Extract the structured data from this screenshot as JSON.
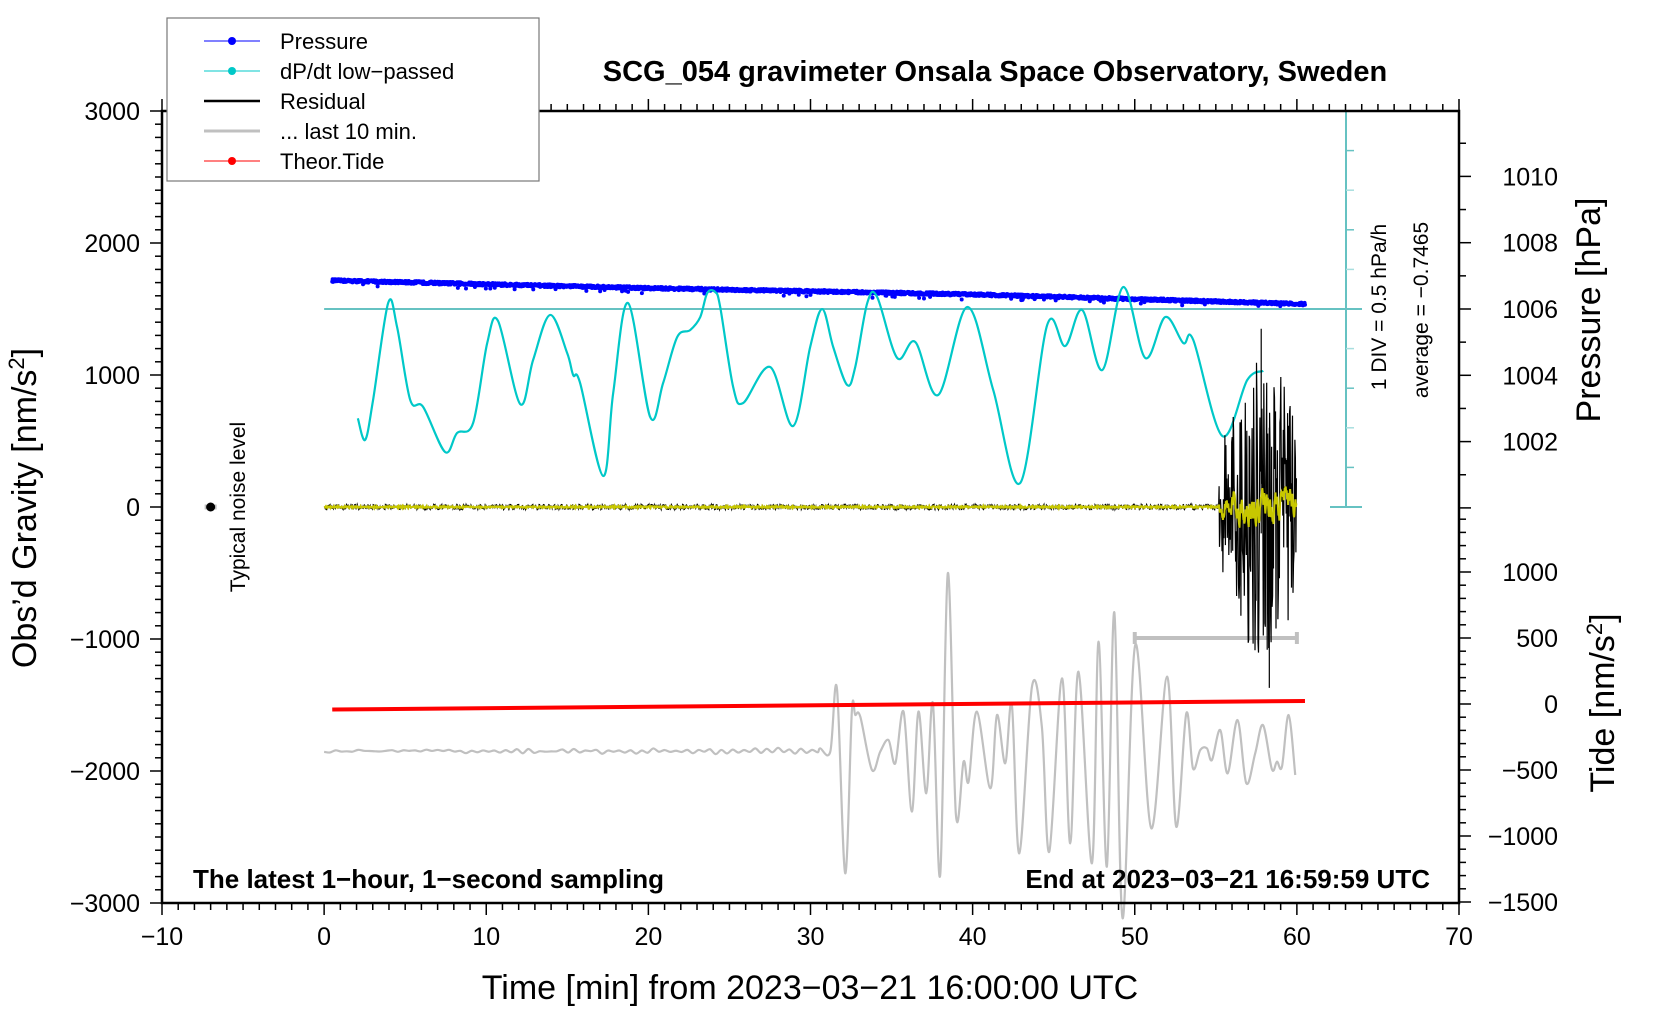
{
  "chart_data": {
    "type": "line",
    "title": "SCG_054 gravimeter Onsala Space Observatory, Sweden",
    "xlabel": "Time [min] from 2023−03−21 16:00:00 UTC",
    "ylabel_left": "Obs’d Gravity [nm/s",
    "ylabel_left_sup": "2",
    "ylabel_left_end": "]",
    "ylabel_right_pressure": "Pressure [hPa]",
    "ylabel_right_tide": "Tide [nm/s",
    "ylabel_right_tide_sup": "2",
    "ylabel_right_tide_end": "]",
    "note_left": "The latest 1−hour, 1−second sampling",
    "note_right": "End at 2023−03−21 16:59:59 UTC",
    "noise_label": "Typical noise level",
    "div_label": "1 DIV = 0.5 hPa/h",
    "average_label": "average = −0.7465",
    "dpdt_average": -0.7465,
    "dpdt_div": 0.5,
    "xlim": [
      -10,
      70
    ],
    "ylim_gravity": [
      -3000,
      3000
    ],
    "pressure_range": [
      1000,
      1011
    ],
    "tide_range": [
      -1500,
      1400
    ],
    "x_ticks": [
      "−10",
      "0",
      "10",
      "20",
      "30",
      "40",
      "50",
      "60",
      "70"
    ],
    "x_tick_values": [
      -10,
      0,
      10,
      20,
      30,
      40,
      50,
      60,
      70
    ],
    "gravity_ticks": [
      "3000",
      "2000",
      "1000",
      "0",
      "−1000",
      "−2000",
      "−3000"
    ],
    "gravity_tick_values": [
      3000,
      2000,
      1000,
      0,
      -1000,
      -2000,
      -3000
    ],
    "pressure_ticks": [
      "1010",
      "1008",
      "1006",
      "1004",
      "1002"
    ],
    "pressure_tick_values": [
      1010,
      1008,
      1006,
      1004,
      1002
    ],
    "tide_ticks": [
      "1000",
      "500",
      "0",
      "−500",
      "−1000",
      "−1500"
    ],
    "tide_tick_values": [
      1000,
      500,
      0,
      -500,
      -1000,
      -1500
    ],
    "legend": [
      {
        "label": "Pressure",
        "color": "#0000ff",
        "marker": true
      },
      {
        "label": "dP/dt low−passed",
        "color": "#00c8c8",
        "marker": true
      },
      {
        "label": "Residual",
        "color": "#000000",
        "marker": false
      },
      {
        "label": "... last 10 min.",
        "color": "#c0c0c0",
        "marker": false
      },
      {
        "label": "Theor.Tide",
        "color": "#ff0000",
        "marker": true
      }
    ],
    "series": {
      "pressure": {
        "name": "Pressure",
        "unit": "hPa",
        "color": "#0000ff",
        "t": [
          0.5,
          20,
          40,
          60.5
        ],
        "values": [
          1006.86,
          1006.63,
          1006.44,
          1006.15
        ],
        "scatter": 0.06
      },
      "dpdt": {
        "name": "dP/dt low-passed",
        "unit": "hPa/h",
        "color": "#00c8c8",
        "t": [
          2.08,
          2.53,
          3.02,
          3.95,
          4.5,
          5.31,
          6.11,
          7.46,
          8.2,
          9.19,
          10.06,
          10.73,
          12.09,
          12.89,
          13.94,
          14.99,
          15.36,
          15.79,
          17.21,
          17.83,
          18.75,
          20.11,
          20.91,
          21.78,
          22.58,
          23.2,
          23.63,
          24.12,
          24.43,
          25.23,
          25.85,
          27.51,
          28.93,
          29.98,
          30.72,
          31.4,
          32.26,
          32.76,
          33.5,
          34.11,
          35.35,
          36.46,
          37.88,
          39.67,
          41.27,
          42.94,
          44.6,
          45.71,
          46.76,
          48.0,
          49.29,
          50.65,
          51.88,
          52.99,
          53.61,
          55.4,
          56.94,
          57.93
        ],
        "values": [
          -2.127,
          -2.4,
          -1.895,
          -0.671,
          -0.974,
          -1.895,
          -1.984,
          -2.552,
          -2.312,
          -2.186,
          -1.176,
          -0.898,
          -1.946,
          -1.39,
          -0.822,
          -1.302,
          -1.58,
          -1.681,
          -2.855,
          -1.807,
          -0.671,
          -2.11,
          -1.681,
          -1.1,
          -1.012,
          -0.848,
          -0.545,
          -0.532,
          -0.721,
          -1.731,
          -1.933,
          -1.479,
          -2.224,
          -1.226,
          -0.747,
          -1.226,
          -1.706,
          -1.479,
          -0.671,
          -0.595,
          -1.365,
          -1.163,
          -1.832,
          -0.721,
          -1.769,
          -2.943,
          -0.948,
          -1.214,
          -0.759,
          -1.517,
          -0.469,
          -1.365,
          -0.848,
          -1.176,
          -1.138,
          -2.35,
          -1.643,
          -1.529
        ]
      },
      "residual": {
        "name": "Residual",
        "unit": "nm/s2",
        "color": "#000000",
        "smoothed_color": "#c8c800",
        "t_range": [
          0,
          60
        ],
        "quiet_amplitude": 20,
        "event_start": 55.2,
        "event_peak_max": 1350,
        "event_peak_min": -1370,
        "smoothed_amplitude": 250
      },
      "last10": {
        "name": "... last 10 min.",
        "unit": "nm/s2",
        "color": "#c0c0c0",
        "baseline": -1850,
        "t": [
          30.6,
          31.22,
          31.63,
          32.14,
          32.55,
          32.76,
          33.07,
          33.79,
          34.3,
          34.81,
          35.23,
          35.74,
          36.25,
          36.66,
          37.14,
          37.55,
          38.0,
          38.47,
          38.97,
          39.44,
          39.75,
          40.26,
          41.09,
          41.5,
          42.01,
          42.42,
          42.88,
          43.66,
          44.27,
          44.73,
          45.51,
          46.02,
          46.53,
          47.36,
          47.77,
          48.28,
          48.74,
          49.25,
          50.03,
          51.02,
          51.99,
          52.56,
          53.18,
          53.59,
          54.04,
          54.45,
          54.76,
          55.27,
          55.73,
          56.34,
          56.88,
          57.43,
          57.91,
          58.46,
          58.77,
          59.08,
          59.49,
          59.9
        ],
        "values": [
          -1828,
          -1854,
          -1374,
          -2775,
          -1550,
          -1576,
          -1588,
          -1992,
          -1854,
          -1765,
          -1942,
          -1550,
          -2308,
          -1550,
          -2169,
          -1487,
          -2788,
          -502,
          -2333,
          -1929,
          -2081,
          -1550,
          -2131,
          -1576,
          -1942,
          -1500,
          -2624,
          -1361,
          -1664,
          -2611,
          -1298,
          -2548,
          -1248,
          -2699,
          -1020,
          -2725,
          -798,
          -3116,
          -1045,
          -2434,
          -1285,
          -2422,
          -1563,
          -1980,
          -1841,
          -1828,
          -1917,
          -1689,
          -2018,
          -1614,
          -2093,
          -1866,
          -1652,
          -1987,
          -1929,
          -1967,
          -1576,
          -2030
        ]
      },
      "tide": {
        "name": "Theor.Tide",
        "unit": "nm/s2",
        "color": "#ff0000",
        "t": [
          0.5,
          60.5
        ],
        "values": [
          -42,
          23
        ]
      }
    },
    "scale_bar": {
      "t_start": 50,
      "t_end": 60,
      "tide_value": 500
    },
    "noise_marker": {
      "t": -7,
      "value": 0
    }
  }
}
